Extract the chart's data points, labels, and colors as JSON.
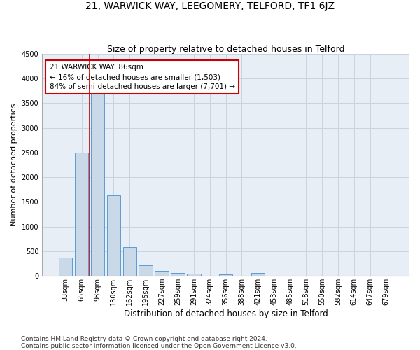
{
  "title": "21, WARWICK WAY, LEEGOMERY, TELFORD, TF1 6JZ",
  "subtitle": "Size of property relative to detached houses in Telford",
  "xlabel": "Distribution of detached houses by size in Telford",
  "ylabel": "Number of detached properties",
  "categories": [
    "33sqm",
    "65sqm",
    "98sqm",
    "130sqm",
    "162sqm",
    "195sqm",
    "227sqm",
    "259sqm",
    "291sqm",
    "324sqm",
    "356sqm",
    "388sqm",
    "421sqm",
    "453sqm",
    "485sqm",
    "518sqm",
    "550sqm",
    "582sqm",
    "614sqm",
    "647sqm",
    "679sqm"
  ],
  "values": [
    370,
    2500,
    3720,
    1630,
    590,
    220,
    105,
    60,
    45,
    0,
    30,
    0,
    55,
    0,
    0,
    0,
    0,
    0,
    0,
    0,
    0
  ],
  "bar_color": "#c9d9e8",
  "bar_edge_color": "#5b9bd5",
  "grid_color": "#c8d4e0",
  "background_color": "#e8eef5",
  "vline_x": 1.5,
  "vline_color": "#cc0000",
  "annotation_text": "21 WARWICK WAY: 86sqm\n← 16% of detached houses are smaller (1,503)\n84% of semi-detached houses are larger (7,701) →",
  "annotation_box_color": "white",
  "annotation_box_edge": "#cc0000",
  "ylim": [
    0,
    4500
  ],
  "yticks": [
    0,
    500,
    1000,
    1500,
    2000,
    2500,
    3000,
    3500,
    4000,
    4500
  ],
  "footer": "Contains HM Land Registry data © Crown copyright and database right 2024.\nContains public sector information licensed under the Open Government Licence v3.0.",
  "title_fontsize": 10,
  "subtitle_fontsize": 9,
  "xlabel_fontsize": 8.5,
  "ylabel_fontsize": 8,
  "tick_fontsize": 7,
  "footer_fontsize": 6.5
}
